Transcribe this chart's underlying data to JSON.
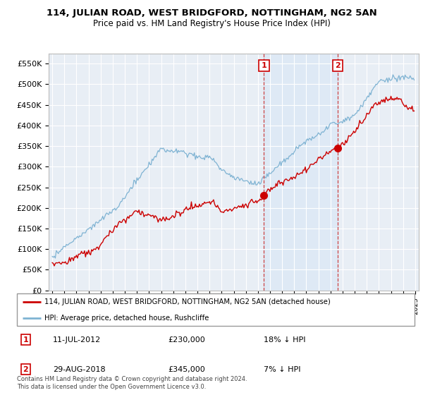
{
  "title": "114, JULIAN ROAD, WEST BRIDGFORD, NOTTINGHAM, NG2 5AN",
  "subtitle": "Price paid vs. HM Land Registry's House Price Index (HPI)",
  "red_label": "114, JULIAN ROAD, WEST BRIDGFORD, NOTTINGHAM, NG2 5AN (detached house)",
  "blue_label": "HPI: Average price, detached house, Rushcliffe",
  "ann1_date": "11-JUL-2012",
  "ann1_price": "£230,000",
  "ann1_pct": "18% ↓ HPI",
  "ann2_date": "29-AUG-2018",
  "ann2_price": "£345,000",
  "ann2_pct": "7% ↓ HPI",
  "footer": "Contains HM Land Registry data © Crown copyright and database right 2024.\nThis data is licensed under the Open Government Licence v3.0.",
  "ylim": [
    0,
    575000
  ],
  "yticks": [
    0,
    50000,
    100000,
    150000,
    200000,
    250000,
    300000,
    350000,
    400000,
    450000,
    500000,
    550000
  ],
  "ytick_labels": [
    "£0",
    "£50K",
    "£100K",
    "£150K",
    "£200K",
    "£250K",
    "£300K",
    "£350K",
    "£400K",
    "£450K",
    "£500K",
    "£550K"
  ],
  "background_color": "#ffffff",
  "plot_bg_color": "#e8eef5",
  "grid_color": "#ffffff",
  "red_color": "#cc0000",
  "blue_color": "#7fb3d3",
  "shade_color": "#dce8f5",
  "vline_color": "#cc4444"
}
